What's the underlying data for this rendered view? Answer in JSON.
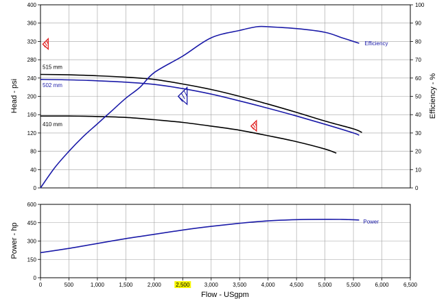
{
  "chart_data": [
    {
      "type": "line",
      "panel": "head-efficiency",
      "ylabel": "Head - psi",
      "y2label": "Efficiency - %",
      "xlim": [
        0,
        6500
      ],
      "ylim": [
        0,
        400
      ],
      "y2lim": [
        0,
        100
      ],
      "grid": true,
      "y_ticks": [
        "0",
        "40",
        "80",
        "120",
        "160",
        "200",
        "240",
        "280",
        "320",
        "360",
        "400"
      ],
      "y2_ticks": [
        "0",
        "10",
        "20",
        "30",
        "40",
        "50",
        "60",
        "70",
        "80",
        "90",
        "100"
      ],
      "series": [
        {
          "name": "515 mm",
          "axis": "left",
          "color": "#000000",
          "x": [
            0,
            500,
            1000,
            1500,
            2000,
            2500,
            3000,
            3500,
            4000,
            4500,
            5000,
            5500,
            5650
          ],
          "y": [
            248,
            247,
            245,
            242,
            237,
            227,
            215,
            200,
            183,
            165,
            146,
            129,
            121
          ]
        },
        {
          "name": "502 mm",
          "axis": "left",
          "color": "#1a1aa8",
          "x": [
            0,
            500,
            1000,
            1500,
            2000,
            2500,
            3000,
            3500,
            4000,
            4500,
            5000,
            5500,
            5600
          ],
          "y": [
            237,
            236,
            234,
            231,
            226,
            217,
            205,
            190,
            174,
            157,
            139,
            120,
            115
          ]
        },
        {
          "name": "410 mm",
          "axis": "left",
          "color": "#000000",
          "x": [
            0,
            500,
            1000,
            1500,
            2000,
            2500,
            3000,
            3500,
            4000,
            4500,
            5000,
            5200
          ],
          "y": [
            157,
            157,
            156,
            154,
            149,
            143,
            135,
            126,
            114,
            101,
            85,
            76
          ]
        },
        {
          "name": "Efficiency",
          "axis": "right",
          "color": "#1a1aa8",
          "x": [
            0,
            250,
            500,
            750,
            1000,
            1250,
            1500,
            1750,
            2000,
            2500,
            3000,
            3500,
            3800,
            4000,
            4500,
            5000,
            5300,
            5600
          ],
          "y": [
            0,
            11,
            20,
            28,
            35,
            42,
            49,
            55,
            63,
            72,
            82,
            86,
            88,
            88,
            87,
            85,
            82,
            79
          ]
        }
      ],
      "markers": [
        {
          "x": 40,
          "y": 314,
          "color": "#e02020"
        },
        {
          "x": 2420,
          "y": 200,
          "color": "#1a1aa8"
        },
        {
          "x": 3700,
          "y": 135,
          "color": "#e02020"
        }
      ]
    },
    {
      "type": "line",
      "panel": "power",
      "xlabel": "Flow - USgpm",
      "ylabel": "Power - hp",
      "xlim": [
        0,
        6500
      ],
      "ylim": [
        0,
        600
      ],
      "grid": true,
      "x_ticks": [
        "0",
        "500",
        "1,000",
        "1,500",
        "2,000",
        "2,500",
        "3,000",
        "3,500",
        "4,000",
        "4,500",
        "5,000",
        "5,500",
        "6,000",
        "6,500"
      ],
      "x_tick_highlight": "2,500",
      "y_ticks": [
        "0",
        "150",
        "300",
        "450",
        "600"
      ],
      "series": [
        {
          "name": "Power",
          "color": "#1a1aa8",
          "x": [
            0,
            500,
            1000,
            1500,
            2000,
            2500,
            3000,
            3500,
            4000,
            4500,
            5000,
            5300,
            5600
          ],
          "y": [
            205,
            240,
            280,
            320,
            355,
            390,
            420,
            445,
            465,
            475,
            478,
            477,
            472
          ]
        }
      ]
    }
  ],
  "colors": {
    "grid": "#a0a0a0",
    "highlight": "#f5f500"
  }
}
